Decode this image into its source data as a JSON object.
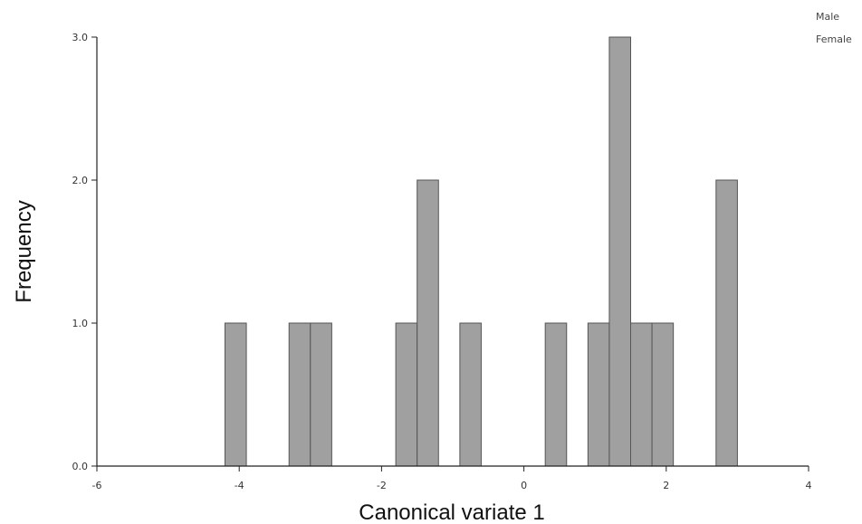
{
  "chart_data": {
    "type": "bar",
    "title": "",
    "xlabel": "Canonical variate 1",
    "ylabel": "Frequency",
    "xlim": [
      -6,
      4
    ],
    "ylim": [
      0,
      3
    ],
    "x_ticks": [
      "-6",
      "-4",
      "-2",
      "0",
      "2",
      "4"
    ],
    "y_ticks": [
      "0.0",
      "1.0",
      "2.0",
      "3.0"
    ],
    "bin_width": 0.3,
    "bars": [
      {
        "x0": -4.2,
        "x1": -3.9,
        "count": 1
      },
      {
        "x0": -3.3,
        "x1": -3.0,
        "count": 1
      },
      {
        "x0": -3.0,
        "x1": -2.7,
        "count": 1
      },
      {
        "x0": -1.8,
        "x1": -1.5,
        "count": 1
      },
      {
        "x0": -1.5,
        "x1": -1.2,
        "count": 2
      },
      {
        "x0": -0.9,
        "x1": -0.6,
        "count": 1
      },
      {
        "x0": 0.3,
        "x1": 0.6,
        "count": 1
      },
      {
        "x0": 0.9,
        "x1": 1.2,
        "count": 1
      },
      {
        "x0": 1.2,
        "x1": 1.5,
        "count": 3
      },
      {
        "x0": 1.5,
        "x1": 1.8,
        "count": 1
      },
      {
        "x0": 1.8,
        "x1": 2.1,
        "count": 1
      },
      {
        "x0": 2.7,
        "x1": 3.0,
        "count": 2
      }
    ],
    "legend": {
      "placement": "top-right",
      "entries": [
        "Male",
        "Female"
      ]
    },
    "bar_color": "#a0a0a0",
    "bar_edge_color": "#555555",
    "grid": false
  }
}
